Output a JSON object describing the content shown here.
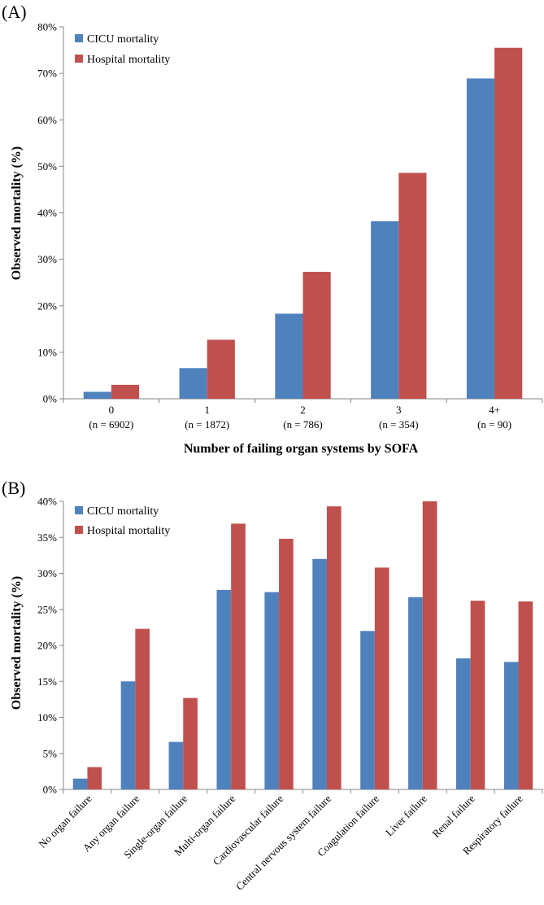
{
  "colors": {
    "cicu": "#4f81bd",
    "hospital": "#c0504d",
    "axis": "#868686"
  },
  "chart_data": [
    {
      "panel": "(A)",
      "type": "bar",
      "title": "",
      "xlabel": "Number of failing organ systems by SOFA",
      "ylabel": "Observed mortality (%)",
      "ylim": [
        0,
        80
      ],
      "yticks": [
        "0%",
        "10%",
        "20%",
        "30%",
        "40%",
        "50%",
        "60%",
        "70%",
        "80%"
      ],
      "categories": [
        "0",
        "1",
        "2",
        "3",
        "4+"
      ],
      "category_sublabels": [
        "(n = 6902)",
        "(n = 1872)",
        "(n = 786)",
        "(n = 354)",
        "(n = 90)"
      ],
      "legend_position": "top-left",
      "series": [
        {
          "name": "CICU mortality",
          "values": [
            1.5,
            6.6,
            18.3,
            38.2,
            68.9
          ]
        },
        {
          "name": "Hospital mortality",
          "values": [
            3.0,
            12.7,
            27.3,
            48.6,
            75.5
          ]
        }
      ]
    },
    {
      "panel": "(B)",
      "type": "bar",
      "title": "",
      "xlabel": "",
      "ylabel": "Observed mortality (%)",
      "ylim": [
        0,
        40
      ],
      "yticks": [
        "0%",
        "5%",
        "10%",
        "15%",
        "20%",
        "25%",
        "30%",
        "35%",
        "40%"
      ],
      "categories": [
        "No organ failure",
        "Any organ failure",
        "Single-organ failure",
        "Multi-organ failure",
        "Cardiovascular failure",
        "Central nervous system failure",
        "Coagulation failure",
        "Liver failure",
        "Renal failure",
        "Respiratory failure"
      ],
      "legend_position": "top-left",
      "series": [
        {
          "name": "CICU mortality",
          "values": [
            1.5,
            15.0,
            6.6,
            27.7,
            27.4,
            32.0,
            22.0,
            26.7,
            18.2,
            17.7
          ]
        },
        {
          "name": "Hospital mortality",
          "values": [
            3.1,
            22.3,
            12.7,
            36.9,
            34.8,
            39.3,
            30.8,
            40.0,
            26.2,
            26.1
          ]
        }
      ]
    }
  ]
}
